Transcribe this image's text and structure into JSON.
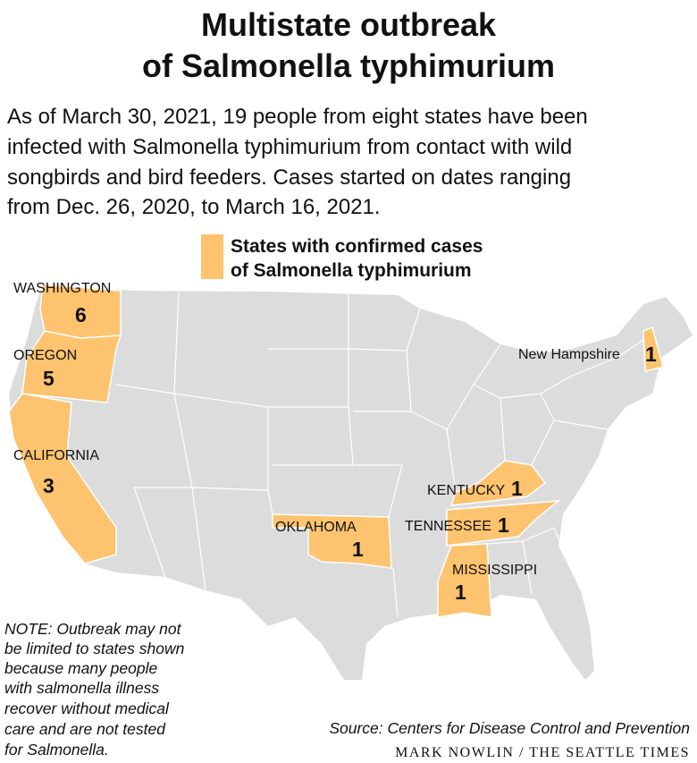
{
  "title_lines": [
    "Multistate outbreak",
    "of Salmonella typhimurium"
  ],
  "intro_lines": [
    "As of March 30, 2021, 19 people from eight states have been",
    "infected with Salmonella typhimurium from contact with wild",
    "songbirds and bird feeders. Cases started on dates ranging",
    "from Dec. 26, 2020, to March 16, 2021."
  ],
  "legend_lines": [
    "States with confirmed cases",
    "of Salmonella typhimurium"
  ],
  "states": [
    {
      "name": "WASHINGTON",
      "cases": 6
    },
    {
      "name": "OREGON",
      "cases": 5
    },
    {
      "name": "CALIFORNIA",
      "cases": 3
    },
    {
      "name": "OKLAHOMA",
      "cases": 1
    },
    {
      "name": "KENTUCKY",
      "cases": 1
    },
    {
      "name": "TENNESSEE",
      "cases": 1
    },
    {
      "name": "MISSISSIPPI",
      "cases": 1
    },
    {
      "name": "New Hampshire",
      "cases": 1
    }
  ],
  "note_lines": [
    "NOTE: Outbreak may not",
    "be limited to states shown",
    "because many people",
    "with salmonella illness",
    "recover without medical",
    "care and are not tested",
    "for Salmonella."
  ],
  "source": "Source: Centers for Disease Control and Prevention",
  "credit": "MARK NOWLIN / THE SEATTLE TIMES"
}
